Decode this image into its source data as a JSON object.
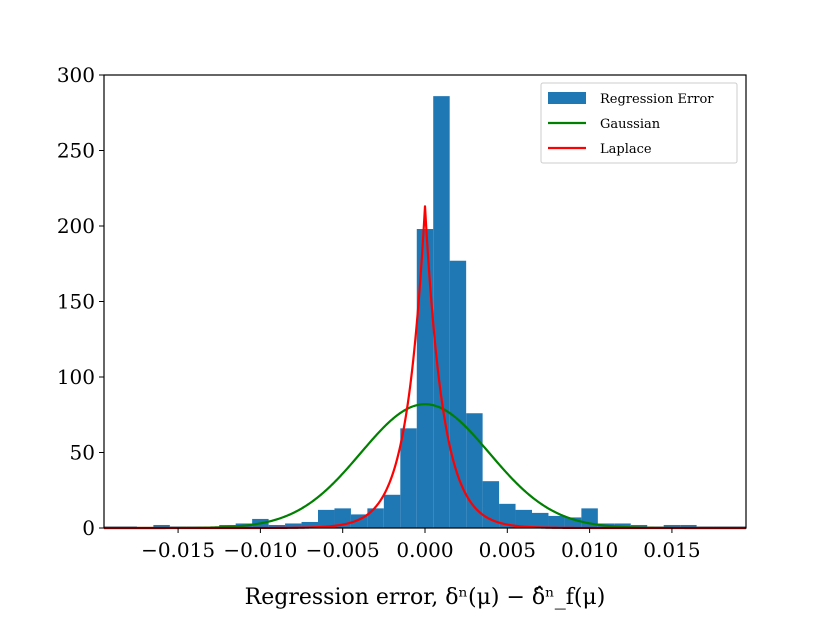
{
  "chart_data": {
    "type": "bar",
    "xlabel": "Regression error, δⁿ(μ) − δ̂ⁿ_f(μ)",
    "xlim": [
      -0.0195,
      0.0195
    ],
    "ylim": [
      0,
      300
    ],
    "xticks": [
      -0.015,
      -0.01,
      -0.005,
      0.0,
      0.005,
      0.01,
      0.015
    ],
    "xtick_labels": [
      "−0.015",
      "−0.010",
      "−0.005",
      "0.000",
      "0.005",
      "0.010",
      "0.015"
    ],
    "yticks": [
      0,
      50,
      100,
      150,
      200,
      250,
      300
    ],
    "ytick_labels": [
      "0",
      "50",
      "100",
      "150",
      "200",
      "250",
      "300"
    ],
    "histogram": {
      "name": "Regression Error",
      "color": "#1f77b4",
      "bin_width": 0.001,
      "bins": [
        {
          "x0": -0.0195,
          "x1": -0.0185,
          "count": 1
        },
        {
          "x0": -0.0185,
          "x1": -0.0175,
          "count": 1
        },
        {
          "x0": -0.0165,
          "x1": -0.0155,
          "count": 2
        },
        {
          "x0": -0.0155,
          "x1": -0.0145,
          "count": 1
        },
        {
          "x0": -0.0145,
          "x1": -0.0135,
          "count": 1
        },
        {
          "x0": -0.0135,
          "x1": -0.0125,
          "count": 1
        },
        {
          "x0": -0.0125,
          "x1": -0.0115,
          "count": 2
        },
        {
          "x0": -0.0115,
          "x1": -0.0105,
          "count": 3
        },
        {
          "x0": -0.0105,
          "x1": -0.0095,
          "count": 6
        },
        {
          "x0": -0.0095,
          "x1": -0.0085,
          "count": 2
        },
        {
          "x0": -0.0085,
          "x1": -0.0075,
          "count": 3
        },
        {
          "x0": -0.0075,
          "x1": -0.0065,
          "count": 4
        },
        {
          "x0": -0.0065,
          "x1": -0.0055,
          "count": 12
        },
        {
          "x0": -0.0055,
          "x1": -0.0045,
          "count": 13
        },
        {
          "x0": -0.0045,
          "x1": -0.0035,
          "count": 9
        },
        {
          "x0": -0.0035,
          "x1": -0.0025,
          "count": 13
        },
        {
          "x0": -0.0025,
          "x1": -0.0015,
          "count": 22
        },
        {
          "x0": -0.0015,
          "x1": -0.0005,
          "count": 66
        },
        {
          "x0": -0.0005,
          "x1": 0.0005,
          "count": 198
        },
        {
          "x0": 0.0005,
          "x1": 0.0015,
          "count": 286
        },
        {
          "x0": 0.0015,
          "x1": 0.0025,
          "count": 177
        },
        {
          "x0": 0.0025,
          "x1": 0.0035,
          "count": 76
        },
        {
          "x0": 0.0035,
          "x1": 0.0045,
          "count": 31
        },
        {
          "x0": 0.0045,
          "x1": 0.0055,
          "count": 16
        },
        {
          "x0": 0.0055,
          "x1": 0.0065,
          "count": 12
        },
        {
          "x0": 0.0065,
          "x1": 0.0075,
          "count": 10
        },
        {
          "x0": 0.0075,
          "x1": 0.0085,
          "count": 8
        },
        {
          "x0": 0.0085,
          "x1": 0.0095,
          "count": 7
        },
        {
          "x0": 0.0095,
          "x1": 0.0105,
          "count": 13
        },
        {
          "x0": 0.0105,
          "x1": 0.0115,
          "count": 3
        },
        {
          "x0": 0.0115,
          "x1": 0.0125,
          "count": 3
        },
        {
          "x0": 0.0125,
          "x1": 0.0135,
          "count": 2
        },
        {
          "x0": 0.0135,
          "x1": 0.0145,
          "count": 1
        },
        {
          "x0": 0.0145,
          "x1": 0.0155,
          "count": 2
        },
        {
          "x0": 0.0155,
          "x1": 0.0165,
          "count": 2
        },
        {
          "x0": 0.0165,
          "x1": 0.0175,
          "count": 1
        },
        {
          "x0": 0.0175,
          "x1": 0.0185,
          "count": 1
        },
        {
          "x0": 0.0185,
          "x1": 0.0195,
          "count": 1
        }
      ]
    },
    "curves": [
      {
        "name": "Gaussian",
        "kind": "gaussian",
        "color": "#008000",
        "peak": 82,
        "mean": 0.0,
        "sigma": 0.0039
      },
      {
        "name": "Laplace",
        "kind": "laplace",
        "color": "#ff0000",
        "peak": 213,
        "mean": 0.0,
        "scale": 0.0011
      }
    ],
    "legend": {
      "position": "top-right",
      "entries": [
        "Regression Error",
        "Gaussian",
        "Laplace"
      ]
    },
    "grid": false
  }
}
